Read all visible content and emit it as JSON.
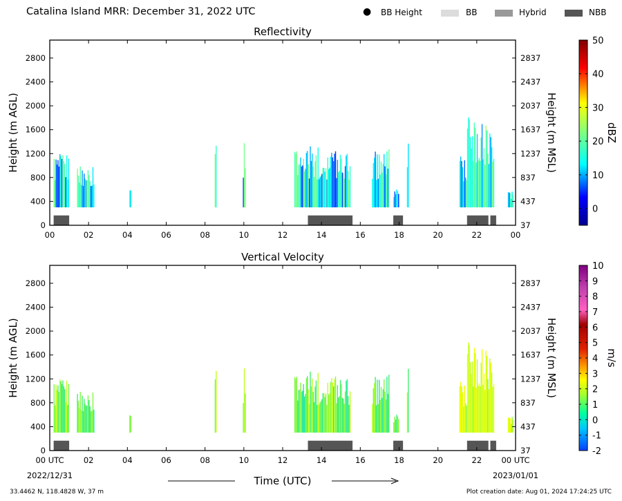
{
  "header": {
    "title": "Catalina Island MRR:  December 31, 2022 UTC",
    "legend": [
      {
        "label": "BB Height",
        "marker": "dot",
        "color": "#000000"
      },
      {
        "label": "BB",
        "marker": "swatch",
        "color": "#dcdcdc"
      },
      {
        "label": "Hybrid",
        "marker": "swatch",
        "color": "#999999"
      },
      {
        "label": "NBB",
        "marker": "swatch",
        "color": "#555555"
      }
    ]
  },
  "footer": {
    "location": "33.4462 N, 118.4828 W, 37 m",
    "creation": "Plot creation date: Aug 01, 2024 17:24:25 UTC",
    "x_axis_title": "Time (UTC)",
    "start_date": "2022/12/31",
    "end_date": "2023/01/01"
  },
  "chart_data": [
    {
      "type": "heatmap",
      "title": "Reflectivity",
      "xlabel": "",
      "ylabel": "Height (m AGL)",
      "y2label": "Height (m MSL)",
      "xlim": [
        0,
        24
      ],
      "ylim": [
        0,
        3100
      ],
      "xticks": [
        "00",
        "02",
        "04",
        "06",
        "08",
        "10",
        "12",
        "14",
        "16",
        "18",
        "20",
        "22",
        "00"
      ],
      "yticks": [
        0,
        400,
        800,
        1200,
        1600,
        2000,
        2400,
        2800
      ],
      "y2ticks": [
        37,
        437,
        837,
        1237,
        1637,
        2037,
        2437,
        2837
      ],
      "colorbar": {
        "label": "dBZ",
        "min": -5,
        "max": 50,
        "ticks": [
          0,
          10,
          20,
          30,
          40,
          50
        ],
        "colormap": "jet"
      },
      "echo_columns_hours_top_m": [
        [
          0.2,
          1.0,
          1200
        ],
        [
          1.4,
          2.3,
          1020
        ],
        [
          4.1,
          4.2,
          600
        ],
        [
          8.5,
          8.6,
          1500
        ],
        [
          9.95,
          10.1,
          1380
        ],
        [
          12.6,
          13.3,
          1300
        ],
        [
          13.3,
          15.5,
          1330
        ],
        [
          16.6,
          17.5,
          1300
        ],
        [
          17.7,
          18.0,
          600
        ],
        [
          18.4,
          18.5,
          1400
        ],
        [
          21.1,
          21.5,
          1200
        ],
        [
          21.5,
          22.3,
          1900
        ],
        [
          22.3,
          22.9,
          1800
        ],
        [
          23.6,
          23.9,
          600
        ]
      ],
      "bright_band": [
        {
          "type": "NBB",
          "x": [
            0.2,
            1.0
          ]
        },
        {
          "type": "NBB",
          "x": [
            13.3,
            15.6
          ]
        },
        {
          "type": "NBB",
          "x": [
            17.7,
            18.2
          ]
        },
        {
          "type": "NBB",
          "x": [
            21.5,
            22.6
          ]
        },
        {
          "type": "NBB",
          "x": [
            22.7,
            23.0
          ]
        }
      ]
    },
    {
      "type": "heatmap",
      "title": "Vertical Velocity",
      "xlabel": "",
      "ylabel": "Height (m AGL)",
      "y2label": "Height (m MSL)",
      "xlim": [
        0,
        24
      ],
      "ylim": [
        0,
        3100
      ],
      "xticks": [
        "00 UTC",
        "02",
        "04",
        "06",
        "08",
        "10",
        "12",
        "14",
        "16",
        "18",
        "20",
        "22",
        "00 UTC"
      ],
      "yticks": [
        0,
        400,
        800,
        1200,
        1600,
        2000,
        2400,
        2800
      ],
      "y2ticks": [
        37,
        437,
        837,
        1237,
        1637,
        2037,
        2437,
        2837
      ],
      "colorbar": {
        "label": "m/s",
        "min": -2,
        "max": 10,
        "ticks": [
          -2,
          -1,
          0,
          1,
          2,
          3,
          4,
          5,
          6,
          7,
          8,
          9,
          10
        ],
        "colormap": "velocity"
      },
      "echo_columns_hours_top_m": [
        [
          0.2,
          1.0,
          1200
        ],
        [
          1.4,
          2.3,
          1020
        ],
        [
          4.1,
          4.2,
          600
        ],
        [
          8.5,
          8.6,
          1500
        ],
        [
          9.95,
          10.1,
          1380
        ],
        [
          12.6,
          13.3,
          1300
        ],
        [
          13.3,
          15.5,
          1330
        ],
        [
          16.6,
          17.5,
          1300
        ],
        [
          17.7,
          18.0,
          600
        ],
        [
          18.4,
          18.5,
          1400
        ],
        [
          21.1,
          21.5,
          1200
        ],
        [
          21.5,
          22.3,
          1900
        ],
        [
          22.3,
          22.9,
          1800
        ],
        [
          23.6,
          23.9,
          600
        ]
      ],
      "bright_band": [
        {
          "type": "NBB",
          "x": [
            0.2,
            1.0
          ]
        },
        {
          "type": "NBB",
          "x": [
            13.3,
            15.6
          ]
        },
        {
          "type": "NBB",
          "x": [
            17.7,
            18.2
          ]
        },
        {
          "type": "NBB",
          "x": [
            21.5,
            22.6
          ]
        },
        {
          "type": "NBB",
          "x": [
            22.7,
            23.0
          ]
        }
      ]
    }
  ]
}
